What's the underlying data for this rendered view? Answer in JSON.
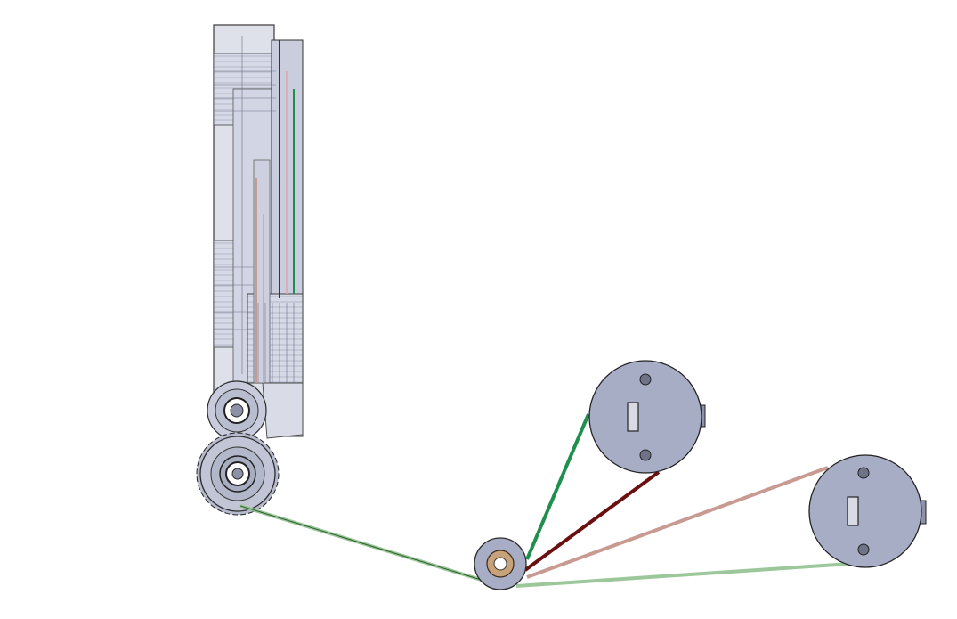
{
  "viewport": {
    "background": "#ffffff"
  },
  "colors": {
    "body_fill": "#cfd3e2",
    "body_stroke": "#3a3a3a",
    "disc_fill": "#a8adc6",
    "disc_stroke": "#2b2b2b",
    "idler_fill": "#c8a27a",
    "cable_green": "#1f8f4e",
    "cable_dark_red": "#6b1010",
    "cable_pink": "#c89a92",
    "cable_light_green": "#9bc79a"
  },
  "components": {
    "mechanism_body": "vertical-tendon-housing",
    "gear": "drive-gear",
    "pulley": "upper-pulley",
    "idler": "idler-pulley",
    "motor_discs": [
      "motor-disc-a",
      "motor-disc-b"
    ],
    "cables": [
      "green-tendon",
      "dark-red-tendon",
      "pink-tendon",
      "light-green-tendon"
    ]
  }
}
